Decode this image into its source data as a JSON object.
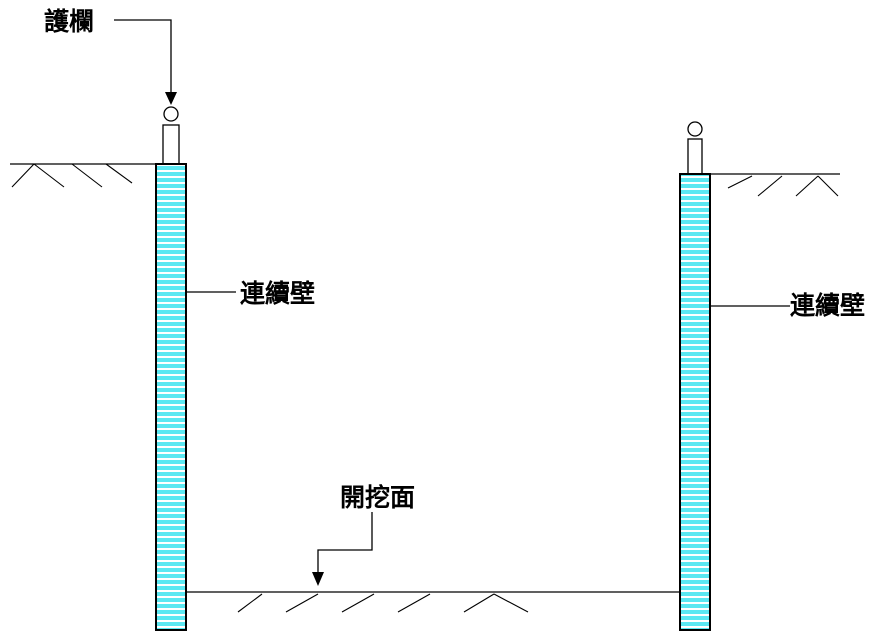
{
  "labels": {
    "guardrail": "護欄",
    "wall_left": "連續壁",
    "wall_right": "連續壁",
    "excavation_surface": "開挖面"
  },
  "colors": {
    "wall_fill": "#5BE8F2",
    "wall_stripe": "#FFFFFF",
    "line": "#000000"
  }
}
